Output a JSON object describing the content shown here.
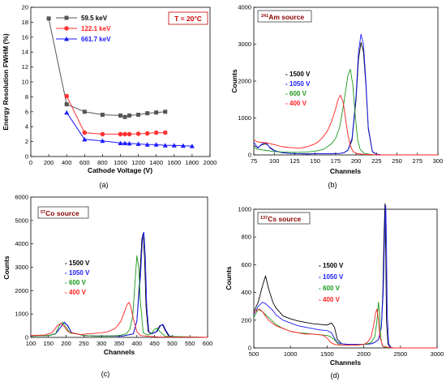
{
  "chart_data": [
    {
      "panel_label": "(a)",
      "type": "line",
      "xlabel": "Cathode Voltage  (V)",
      "ylabel": "Energy Resolution FWHM  (%)",
      "xlim": [
        0,
        2000
      ],
      "ylim": [
        0,
        20
      ],
      "xticks": [
        0,
        200,
        400,
        600,
        800,
        1000,
        1200,
        1400,
        1600,
        1800,
        2000
      ],
      "yticks": [
        0,
        2,
        4,
        6,
        8,
        10,
        12,
        14,
        16,
        18,
        20
      ],
      "grid": false,
      "legend_position": "top-left",
      "annotation": {
        "text": "T = 20°C",
        "color": "#cc0000"
      },
      "series": [
        {
          "name": "59.5 keV",
          "color": "#555555",
          "marker": "square",
          "x": [
            200,
            400,
            600,
            800,
            1000,
            1050,
            1100,
            1200,
            1300,
            1400,
            1500
          ],
          "y": [
            18.5,
            7.0,
            6.0,
            5.6,
            5.5,
            5.3,
            5.5,
            5.6,
            5.8,
            5.9,
            6.0
          ]
        },
        {
          "name": "122.1 keV",
          "color": "#ff3333",
          "marker": "circle",
          "x": [
            400,
            600,
            800,
            1000,
            1050,
            1100,
            1200,
            1300,
            1400,
            1500
          ],
          "y": [
            8.1,
            3.2,
            3.0,
            3.0,
            3.0,
            3.0,
            3.05,
            3.1,
            3.2,
            3.2
          ]
        },
        {
          "name": "661.7 keV",
          "color": "#1a1aff",
          "marker": "triangle",
          "x": [
            400,
            600,
            800,
            1000,
            1050,
            1100,
            1200,
            1300,
            1400,
            1500,
            1600,
            1700,
            1800
          ],
          "y": [
            5.9,
            2.3,
            2.1,
            1.8,
            1.8,
            1.75,
            1.7,
            1.6,
            1.6,
            1.5,
            1.5,
            1.45,
            1.4
          ]
        }
      ]
    },
    {
      "panel_label": "(b)",
      "type": "line",
      "title_sup": "241",
      "title": "Am source",
      "xlabel": "Channels",
      "ylabel": "Counts",
      "xlim": [
        75,
        300
      ],
      "ylim": [
        0,
        4000
      ],
      "xticks": [
        75,
        100,
        125,
        150,
        175,
        200,
        225,
        250,
        275,
        300
      ],
      "yticks": [
        0,
        1000,
        2000,
        3000,
        4000
      ],
      "legend": [
        "1500 V",
        "1050 V",
        "600 V",
        "400 V"
      ],
      "series": [
        {
          "name": "1500 V",
          "color": "#000000",
          "x": [
            75,
            80,
            85,
            90,
            95,
            100,
            110,
            120,
            130,
            140,
            150,
            160,
            170,
            180,
            185,
            190,
            195,
            200,
            203,
            206,
            209,
            212,
            215,
            220,
            225,
            230,
            240,
            260,
            300
          ],
          "y": [
            250,
            200,
            280,
            300,
            200,
            120,
            60,
            40,
            30,
            30,
            30,
            30,
            35,
            40,
            60,
            120,
            400,
            1500,
            2600,
            3050,
            2800,
            1900,
            700,
            80,
            20,
            5,
            0,
            0,
            0
          ]
        },
        {
          "name": "1050 V",
          "color": "#1a1aff",
          "x": [
            75,
            80,
            85,
            90,
            95,
            100,
            110,
            120,
            130,
            140,
            150,
            160,
            170,
            180,
            185,
            190,
            195,
            200,
            203,
            206,
            209,
            212,
            215,
            220,
            225,
            230,
            240,
            260,
            300
          ],
          "y": [
            350,
            180,
            300,
            330,
            180,
            110,
            60,
            40,
            30,
            25,
            30,
            30,
            35,
            40,
            60,
            130,
            450,
            1600,
            2800,
            3270,
            3000,
            2000,
            750,
            90,
            20,
            5,
            0,
            0,
            0
          ]
        },
        {
          "name": "600 V",
          "color": "#1a991a",
          "x": [
            75,
            80,
            90,
            100,
            110,
            120,
            130,
            140,
            150,
            160,
            170,
            175,
            180,
            185,
            190,
            193,
            196,
            199,
            202,
            205,
            210,
            220,
            240,
            300
          ],
          "y": [
            200,
            150,
            120,
            90,
            80,
            70,
            70,
            80,
            100,
            150,
            300,
            450,
            750,
            1400,
            2150,
            2320,
            1900,
            1050,
            400,
            150,
            40,
            5,
            0,
            0
          ]
        },
        {
          "name": "400 V",
          "color": "#ff2020",
          "x": [
            75,
            80,
            90,
            100,
            110,
            120,
            130,
            140,
            150,
            155,
            160,
            165,
            170,
            175,
            178,
            181,
            184,
            187,
            190,
            193,
            196,
            200,
            210,
            230,
            300
          ],
          "y": [
            400,
            350,
            330,
            280,
            220,
            200,
            180,
            220,
            300,
            380,
            500,
            650,
            900,
            1250,
            1500,
            1620,
            1450,
            1000,
            550,
            250,
            100,
            40,
            10,
            0,
            0
          ]
        }
      ]
    },
    {
      "panel_label": "(c)",
      "type": "line",
      "title_sup": "57",
      "title": "Co source",
      "xlabel": "Channels",
      "ylabel": "Counts",
      "xlim": [
        100,
        600
      ],
      "ylim": [
        0,
        6000
      ],
      "xticks": [
        100,
        150,
        200,
        250,
        300,
        350,
        400,
        450,
        500,
        550,
        600
      ],
      "yticks": [
        0,
        1000,
        2000,
        3000,
        4000,
        5000,
        6000
      ],
      "legend": [
        "1500 V",
        "1050 V",
        "600 V",
        "400 V"
      ],
      "series": [
        {
          "name": "1500 V",
          "color": "#000000",
          "x": [
            100,
            150,
            170,
            185,
            195,
            205,
            215,
            230,
            250,
            280,
            320,
            360,
            390,
            400,
            408,
            414,
            418,
            422,
            426,
            432,
            440,
            455,
            465,
            472,
            480,
            490,
            520,
            600
          ],
          "y": [
            60,
            80,
            150,
            450,
            650,
            480,
            200,
            150,
            80,
            60,
            60,
            60,
            150,
            700,
            2500,
            4200,
            4450,
            3300,
            1300,
            250,
            150,
            250,
            500,
            550,
            300,
            60,
            10,
            0
          ]
        },
        {
          "name": "1050 V",
          "color": "#1a1aff",
          "x": [
            100,
            150,
            170,
            185,
            195,
            205,
            215,
            230,
            250,
            280,
            320,
            360,
            390,
            400,
            410,
            416,
            420,
            424,
            428,
            434,
            442,
            457,
            467,
            474,
            482,
            492,
            520,
            600
          ],
          "y": [
            60,
            80,
            150,
            450,
            650,
            500,
            200,
            150,
            80,
            60,
            60,
            60,
            150,
            700,
            2600,
            4300,
            4500,
            3400,
            1300,
            250,
            150,
            250,
            500,
            560,
            300,
            60,
            10,
            0
          ]
        },
        {
          "name": "600 V",
          "color": "#1a991a",
          "x": [
            100,
            150,
            170,
            180,
            190,
            200,
            212,
            230,
            250,
            280,
            320,
            350,
            370,
            380,
            388,
            394,
            400,
            405,
            410,
            418,
            430,
            440,
            450,
            458,
            465,
            480,
            600
          ],
          "y": [
            60,
            80,
            150,
            500,
            650,
            420,
            180,
            150,
            80,
            60,
            60,
            80,
            150,
            350,
            900,
            2200,
            3500,
            3000,
            1500,
            200,
            100,
            150,
            350,
            400,
            250,
            50,
            0
          ]
        },
        {
          "name": "400 V",
          "color": "#ff2020",
          "x": [
            100,
            140,
            160,
            175,
            185,
            195,
            205,
            220,
            240,
            260,
            280,
            300,
            320,
            340,
            355,
            365,
            372,
            378,
            383,
            390,
            400,
            410,
            425,
            440,
            460,
            600
          ],
          "y": [
            80,
            100,
            200,
            500,
            600,
            450,
            250,
            180,
            120,
            150,
            170,
            200,
            250,
            400,
            700,
            1100,
            1400,
            1500,
            1300,
            800,
            250,
            80,
            60,
            40,
            20,
            0
          ]
        }
      ]
    },
    {
      "panel_label": "(d)",
      "type": "line",
      "title_sup": "137",
      "title": "Cs source",
      "xlabel": "Channels",
      "ylabel": "Counts",
      "xlim": [
        500,
        3000
      ],
      "ylim": [
        0,
        1000
      ],
      "xticks": [
        500,
        1000,
        1500,
        2000,
        2500,
        3000
      ],
      "yticks": [
        0,
        200,
        400,
        600,
        800,
        1000
      ],
      "legend": [
        "1500 V",
        "1050 V",
        "600 V",
        "400 V"
      ],
      "series": [
        {
          "name": "1500 V",
          "color": "#000000",
          "x": [
            500,
            560,
            620,
            660,
            700,
            760,
            800,
            900,
            1000,
            1100,
            1200,
            1300,
            1400,
            1500,
            1560,
            1600,
            1640,
            1700,
            1800,
            1900,
            2000,
            2100,
            2150,
            2200,
            2240,
            2260,
            2275,
            2290,
            2300,
            2310,
            2330,
            2360,
            2400,
            2500,
            3000
          ],
          "y": [
            260,
            330,
            450,
            520,
            430,
            330,
            290,
            230,
            210,
            195,
            185,
            175,
            170,
            165,
            180,
            150,
            60,
            30,
            25,
            25,
            25,
            30,
            40,
            60,
            150,
            400,
            800,
            1040,
            700,
            200,
            30,
            5,
            0,
            0,
            0
          ]
        },
        {
          "name": "1050 V",
          "color": "#1a1aff",
          "x": [
            500,
            560,
            620,
            660,
            700,
            760,
            800,
            900,
            1000,
            1100,
            1200,
            1300,
            1400,
            1500,
            1560,
            1600,
            1640,
            1700,
            1800,
            1900,
            2000,
            2100,
            2150,
            2200,
            2240,
            2265,
            2285,
            2300,
            2310,
            2320,
            2340,
            2370,
            2400,
            2500,
            3000
          ],
          "y": [
            240,
            300,
            330,
            320,
            300,
            270,
            240,
            200,
            180,
            160,
            150,
            140,
            130,
            125,
            110,
            70,
            40,
            30,
            25,
            25,
            25,
            30,
            40,
            60,
            150,
            400,
            850,
            1030,
            750,
            250,
            30,
            5,
            0,
            0,
            0
          ]
        },
        {
          "name": "600 V",
          "color": "#1a991a",
          "x": [
            500,
            560,
            620,
            700,
            800,
            900,
            1000,
            1100,
            1200,
            1300,
            1400,
            1500,
            1550,
            1600,
            1650,
            1700,
            1800,
            1900,
            2000,
            2050,
            2100,
            2150,
            2180,
            2200,
            2215,
            2230,
            2250,
            2280,
            2400,
            3000
          ],
          "y": [
            220,
            280,
            260,
            220,
            170,
            140,
            120,
            110,
            105,
            100,
            95,
            90,
            80,
            60,
            30,
            20,
            20,
            20,
            25,
            30,
            40,
            80,
            200,
            330,
            250,
            80,
            20,
            5,
            0,
            0
          ]
        },
        {
          "name": "400 V",
          "color": "#ff2020",
          "x": [
            500,
            540,
            580,
            620,
            660,
            700,
            800,
            900,
            1000,
            1100,
            1200,
            1300,
            1400,
            1450,
            1500,
            1550,
            1600,
            1700,
            1800,
            1900,
            2000,
            2050,
            2100,
            2130,
            2160,
            2180,
            2200,
            2220,
            2260,
            2400,
            3000
          ],
          "y": [
            250,
            270,
            280,
            260,
            230,
            200,
            160,
            140,
            120,
            110,
            100,
            100,
            95,
            90,
            70,
            40,
            25,
            20,
            20,
            20,
            25,
            40,
            80,
            150,
            250,
            280,
            200,
            80,
            10,
            0,
            0
          ]
        }
      ]
    }
  ]
}
